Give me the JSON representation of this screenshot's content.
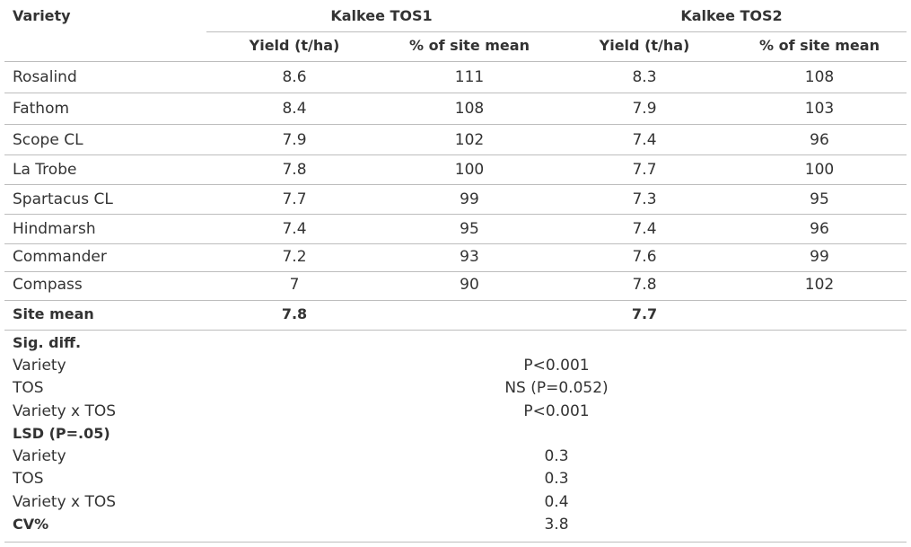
{
  "header": {
    "variety": "Variety",
    "groups": [
      "Kalkee TOS1",
      "Kalkee TOS2"
    ],
    "columns": [
      "Yield (t/ha)",
      "% of site mean",
      "Yield (t/ha)",
      "% of site mean"
    ]
  },
  "rows": [
    [
      "Rosalind",
      8.6,
      111,
      8.3,
      108
    ],
    [
      "Fathom",
      8.4,
      108,
      7.9,
      103
    ],
    [
      "Scope CL",
      7.9,
      102,
      7.4,
      96
    ],
    [
      "La Trobe",
      7.8,
      100,
      7.7,
      100
    ],
    [
      "Spartacus CL",
      7.7,
      99,
      7.3,
      95
    ],
    [
      "Hindmarsh",
      7.4,
      95,
      7.4,
      96
    ],
    [
      "Commander",
      7.2,
      93,
      7.6,
      99
    ],
    [
      "Compass",
      7,
      90,
      7.8,
      102
    ]
  ],
  "site_mean": {
    "label": "Site mean",
    "values": [
      7.8,
      7.7
    ]
  },
  "sig_diff": {
    "title": "Sig. diff.",
    "rows": [
      [
        "Variety",
        "P<0.001"
      ],
      [
        "TOS",
        "NS (P=0.052)"
      ],
      [
        "Variety x TOS",
        "P<0.001"
      ]
    ]
  },
  "lsd": {
    "title": "LSD (P=.05)",
    "rows": [
      [
        "Variety",
        0.3
      ],
      [
        "TOS",
        0.3
      ],
      [
        "Variety x TOS",
        0.4
      ]
    ]
  },
  "cv": {
    "label": "CV%",
    "value": 3.8
  }
}
